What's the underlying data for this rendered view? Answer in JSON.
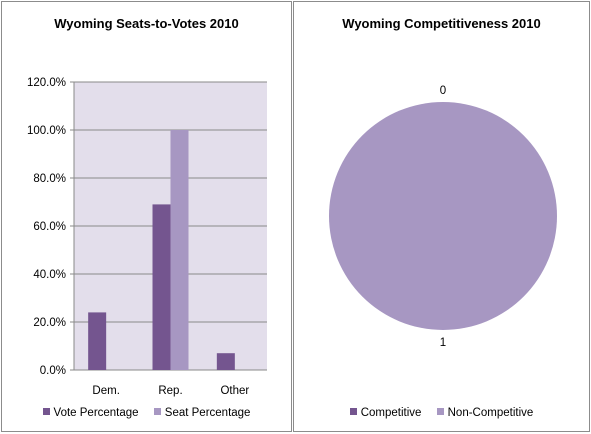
{
  "chart_data": [
    {
      "type": "bar",
      "title": "Wyoming Seats-to-Votes 2010",
      "categories": [
        "Dem.",
        "Rep.",
        "Other"
      ],
      "series": [
        {
          "name": "Vote Percentage",
          "color": "#74558f",
          "values": [
            24.0,
            69.0,
            7.0
          ]
        },
        {
          "name": "Seat Percentage",
          "color": "#a797c2",
          "values": [
            0.0,
            100.0,
            0.0
          ]
        }
      ],
      "ylim": [
        0,
        120
      ],
      "yticks": [
        0,
        20,
        40,
        60,
        80,
        100,
        120
      ],
      "ytick_labels": [
        "0.0%",
        "20.0%",
        "40.0%",
        "60.0%",
        "80.0%",
        "100.0%",
        "120.0%"
      ],
      "grid": true,
      "plot_background": "#e3deeb",
      "legend": "bottom"
    },
    {
      "type": "pie",
      "title": "Wyoming Competitiveness 2010",
      "categories": [
        "Competitive",
        "Non-Competitive"
      ],
      "values": [
        0,
        1
      ],
      "colors": [
        "#74558f",
        "#a797c2"
      ],
      "data_labels": [
        "0",
        "1"
      ],
      "legend": "bottom"
    }
  ]
}
